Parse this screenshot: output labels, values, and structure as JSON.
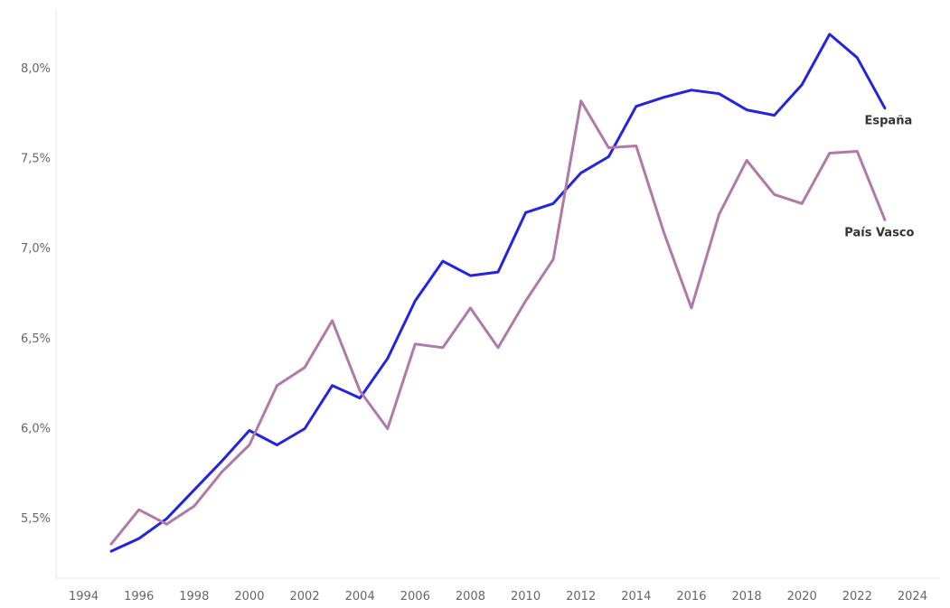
{
  "chart_data": {
    "type": "line",
    "title": "",
    "xlabel": "",
    "ylabel": "",
    "x": [
      1995,
      1996,
      1997,
      1998,
      1999,
      2000,
      2001,
      2002,
      2003,
      2004,
      2005,
      2006,
      2007,
      2008,
      2009,
      2010,
      2011,
      2012,
      2013,
      2014,
      2015,
      2016,
      2017,
      2018,
      2019,
      2020,
      2021,
      2022,
      2023
    ],
    "xlim": [
      1993,
      2025
    ],
    "x_ticks": [
      1994,
      1996,
      1998,
      2000,
      2002,
      2004,
      2006,
      2008,
      2010,
      2012,
      2014,
      2016,
      2018,
      2020,
      2022,
      2024
    ],
    "x_tick_labels": [
      "1994",
      "1996",
      "1998",
      "2000",
      "2002",
      "2004",
      "2006",
      "2008",
      "2010",
      "2012",
      "2014",
      "2016",
      "2018",
      "2020",
      "2022",
      "2024"
    ],
    "ylim": [
      5.17,
      8.33
    ],
    "y_ticks": [
      5.5,
      6.0,
      6.5,
      7.0,
      7.5,
      8.0
    ],
    "y_tick_labels": [
      "5,5%",
      "6,0%",
      "6,5%",
      "7,0%",
      "7,5%",
      "8,0%"
    ],
    "grid": false,
    "legend": "none",
    "series": [
      {
        "name": "España",
        "color": "#2323e0",
        "values": [
          5.32,
          5.39,
          5.5,
          5.66,
          5.82,
          5.99,
          5.91,
          6.0,
          6.24,
          6.17,
          6.39,
          6.71,
          6.93,
          6.85,
          6.87,
          7.2,
          7.25,
          7.42,
          7.51,
          7.79,
          7.84,
          7.88,
          7.86,
          7.77,
          7.74,
          7.91,
          8.19,
          8.06,
          7.78
        ]
      },
      {
        "name": "País Vasco",
        "color": "#b07aa8",
        "values": [
          5.36,
          5.55,
          5.47,
          5.57,
          5.76,
          5.91,
          6.24,
          6.34,
          6.6,
          6.21,
          6.0,
          6.47,
          6.45,
          6.67,
          6.45,
          6.71,
          6.94,
          7.82,
          7.56,
          7.57,
          7.09,
          6.67,
          7.19,
          7.49,
          7.3,
          7.25,
          7.53,
          7.54,
          7.16
        ]
      }
    ]
  }
}
